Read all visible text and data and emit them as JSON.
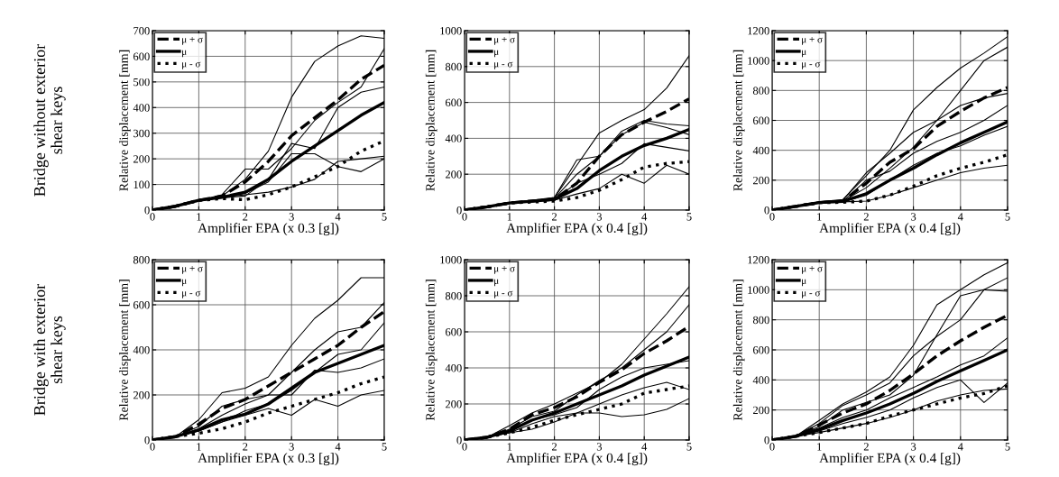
{
  "chart_data": [
    {
      "type": "line",
      "xlabel": "Amplifier EPA (x 0.3 [g])",
      "ylabel": "Relative displacement [mm]",
      "annotations": [
        "Bridge without exterior\nshear keys"
      ],
      "x": [
        0,
        0.5,
        1,
        1.5,
        2,
        2.5,
        3,
        3.5,
        4,
        4.5,
        5
      ],
      "xlim": [
        0,
        5
      ],
      "xticks": [
        0,
        1,
        2,
        3,
        4,
        5
      ],
      "ylim": [
        0,
        700
      ],
      "yticks": [
        0,
        100,
        200,
        300,
        400,
        500,
        600,
        700
      ],
      "grid": true,
      "legend": "top left",
      "series": [
        {
          "name": "μ + σ",
          "color": "#000000",
          "line_style": "dashed",
          "values": [
            0,
            15,
            38,
            55,
            110,
            190,
            290,
            360,
            430,
            510,
            565
          ]
        },
        {
          "name": "μ",
          "color": "#000000",
          "line_style": "solid",
          "values": [
            0,
            15,
            38,
            50,
            70,
            120,
            190,
            250,
            310,
            370,
            420
          ]
        },
        {
          "name": "μ - σ",
          "color": "#000000",
          "line_style": "dotted",
          "values": [
            0,
            15,
            38,
            45,
            40,
            60,
            90,
            130,
            170,
            230,
            270
          ]
        },
        {
          "color": "#000000",
          "line_style": "solid",
          "values": [
            0,
            15,
            38,
            55,
            120,
            230,
            440,
            580,
            640,
            680,
            670
          ]
        },
        {
          "color": "#000000",
          "line_style": "solid",
          "values": [
            0,
            15,
            38,
            60,
            160,
            160,
            240,
            350,
            420,
            480,
            630
          ]
        },
        {
          "color": "#000000",
          "line_style": "solid",
          "values": [
            0,
            15,
            38,
            50,
            60,
            70,
            90,
            120,
            190,
            200,
            210
          ]
        },
        {
          "color": "#000000",
          "line_style": "solid",
          "values": [
            0,
            15,
            38,
            48,
            55,
            120,
            260,
            240,
            400,
            460,
            480
          ]
        },
        {
          "color": "#000000",
          "line_style": "solid",
          "values": [
            0,
            15,
            38,
            50,
            65,
            110,
            220,
            220,
            170,
            150,
            200
          ]
        }
      ]
    },
    {
      "type": "line",
      "xlabel": "Amplifier EPA (x 0.4 [g])",
      "ylabel": "Relative displacement [mm]",
      "x": [
        0,
        0.5,
        1,
        1.5,
        2,
        2.5,
        3,
        3.5,
        4,
        4.5,
        5
      ],
      "xlim": [
        0,
        5
      ],
      "xticks": [
        0,
        1,
        2,
        3,
        4,
        5
      ],
      "ylim": [
        0,
        1000
      ],
      "yticks": [
        0,
        200,
        400,
        600,
        800,
        1000
      ],
      "grid": true,
      "legend": "top left",
      "series": [
        {
          "name": "μ + σ",
          "color": "#000000",
          "line_style": "dashed",
          "values": [
            0,
            18,
            40,
            50,
            60,
            150,
            300,
            420,
            490,
            550,
            620
          ]
        },
        {
          "name": "μ",
          "color": "#000000",
          "line_style": "solid",
          "values": [
            0,
            18,
            40,
            50,
            60,
            120,
            220,
            300,
            360,
            400,
            450
          ]
        },
        {
          "name": "μ - σ",
          "color": "#000000",
          "line_style": "dotted",
          "values": [
            0,
            18,
            40,
            45,
            50,
            70,
            110,
            170,
            240,
            260,
            270
          ]
        },
        {
          "color": "#000000",
          "line_style": "solid",
          "values": [
            0,
            18,
            42,
            55,
            70,
            250,
            430,
            500,
            560,
            680,
            860
          ]
        },
        {
          "color": "#000000",
          "line_style": "solid",
          "values": [
            0,
            18,
            40,
            52,
            65,
            200,
            300,
            440,
            500,
            480,
            470
          ]
        },
        {
          "color": "#000000",
          "line_style": "solid",
          "values": [
            0,
            18,
            38,
            48,
            55,
            90,
            120,
            200,
            150,
            250,
            200
          ]
        },
        {
          "color": "#000000",
          "line_style": "solid",
          "values": [
            0,
            18,
            40,
            50,
            60,
            150,
            200,
            260,
            370,
            350,
            330
          ]
        },
        {
          "color": "#000000",
          "line_style": "solid",
          "values": [
            0,
            18,
            40,
            50,
            70,
            280,
            300,
            420,
            490,
            460,
            420
          ]
        }
      ]
    },
    {
      "type": "line",
      "xlabel": "Amplifier EPA (x 0.4 [g])",
      "ylabel": "Relative displacement [mm]",
      "x": [
        0,
        0.5,
        1,
        1.5,
        2,
        2.5,
        3,
        3.5,
        4,
        4.5,
        5
      ],
      "xlim": [
        0,
        5
      ],
      "xticks": [
        0,
        1,
        2,
        3,
        4,
        5
      ],
      "ylim": [
        0,
        1200
      ],
      "yticks": [
        0,
        200,
        400,
        600,
        800,
        1000,
        1200
      ],
      "grid": true,
      "legend": "top left",
      "series": [
        {
          "name": "μ + σ",
          "color": "#000000",
          "line_style": "dashed",
          "values": [
            0,
            25,
            50,
            60,
            180,
            320,
            410,
            560,
            660,
            750,
            820
          ]
        },
        {
          "name": "μ",
          "color": "#000000",
          "line_style": "solid",
          "values": [
            0,
            25,
            50,
            58,
            110,
            200,
            280,
            370,
            450,
            520,
            590
          ]
        },
        {
          "name": "μ - σ",
          "color": "#000000",
          "line_style": "dotted",
          "values": [
            0,
            25,
            50,
            52,
            60,
            100,
            160,
            230,
            280,
            320,
            370
          ]
        },
        {
          "color": "#000000",
          "line_style": "solid",
          "values": [
            0,
            25,
            55,
            70,
            230,
            400,
            670,
            820,
            950,
            1050,
            1160
          ]
        },
        {
          "color": "#000000",
          "line_style": "solid",
          "values": [
            0,
            25,
            55,
            65,
            250,
            380,
            520,
            600,
            800,
            1000,
            1090
          ]
        },
        {
          "color": "#000000",
          "line_style": "solid",
          "values": [
            0,
            25,
            50,
            60,
            150,
            280,
            420,
            600,
            700,
            750,
            780
          ]
        },
        {
          "color": "#000000",
          "line_style": "solid",
          "values": [
            0,
            25,
            50,
            55,
            100,
            200,
            300,
            380,
            430,
            500,
            560
          ]
        },
        {
          "color": "#000000",
          "line_style": "solid",
          "values": [
            0,
            25,
            50,
            55,
            60,
            100,
            150,
            200,
            250,
            280,
            300
          ]
        },
        {
          "color": "#000000",
          "line_style": "solid",
          "values": [
            0,
            25,
            50,
            60,
            200,
            260,
            380,
            460,
            520,
            600,
            700
          ]
        }
      ]
    },
    {
      "type": "line",
      "xlabel": "Amplifier EPA (x 0.3 [g])",
      "ylabel": "Relative displacement [mm]",
      "annotations": [
        "Bridge with exterior\nshear keys"
      ],
      "x": [
        0,
        0.5,
        1,
        1.5,
        2,
        2.5,
        3,
        3.5,
        4,
        4.5,
        5
      ],
      "xlim": [
        0,
        5
      ],
      "xticks": [
        0,
        1,
        2,
        3,
        4,
        5
      ],
      "ylim": [
        0,
        800
      ],
      "yticks": [
        0,
        200,
        400,
        600,
        800
      ],
      "grid": true,
      "legend": "top left",
      "series": [
        {
          "name": "μ + σ",
          "color": "#000000",
          "line_style": "dashed",
          "values": [
            0,
            15,
            70,
            140,
            180,
            240,
            300,
            360,
            420,
            500,
            570
          ]
        },
        {
          "name": "μ",
          "color": "#000000",
          "line_style": "solid",
          "values": [
            0,
            15,
            45,
            90,
            115,
            160,
            230,
            300,
            340,
            380,
            420
          ]
        },
        {
          "name": "μ - σ",
          "color": "#000000",
          "line_style": "dotted",
          "values": [
            0,
            15,
            30,
            50,
            80,
            120,
            150,
            180,
            210,
            250,
            280
          ]
        },
        {
          "color": "#000000",
          "line_style": "solid",
          "values": [
            0,
            15,
            90,
            210,
            230,
            280,
            420,
            540,
            620,
            720,
            720
          ]
        },
        {
          "color": "#000000",
          "line_style": "solid",
          "values": [
            0,
            15,
            60,
            150,
            180,
            200,
            300,
            400,
            480,
            500,
            610
          ]
        },
        {
          "color": "#000000",
          "line_style": "solid",
          "values": [
            0,
            15,
            40,
            80,
            110,
            140,
            110,
            180,
            150,
            200,
            220
          ]
        },
        {
          "color": "#000000",
          "line_style": "solid",
          "values": [
            0,
            15,
            50,
            110,
            160,
            200,
            200,
            310,
            300,
            320,
            360
          ]
        },
        {
          "color": "#000000",
          "line_style": "solid",
          "values": [
            0,
            15,
            40,
            80,
            130,
            160,
            220,
            300,
            380,
            400,
            520
          ]
        }
      ]
    },
    {
      "type": "line",
      "xlabel": "Amplifier EPA (x 0.4 [g])",
      "ylabel": "Relative displacement [mm]",
      "x": [
        0,
        0.5,
        1,
        1.5,
        2,
        2.5,
        3,
        3.5,
        4,
        4.5,
        5
      ],
      "xlim": [
        0,
        5
      ],
      "xticks": [
        0,
        1,
        2,
        3,
        4,
        5
      ],
      "ylim": [
        0,
        1000
      ],
      "yticks": [
        0,
        200,
        400,
        600,
        800,
        1000
      ],
      "grid": true,
      "legend": "top left",
      "series": [
        {
          "name": "μ + σ",
          "color": "#000000",
          "line_style": "dashed",
          "values": [
            0,
            15,
            60,
            140,
            180,
            240,
            320,
            390,
            480,
            550,
            630
          ]
        },
        {
          "name": "μ",
          "color": "#000000",
          "line_style": "solid",
          "values": [
            0,
            15,
            50,
            110,
            150,
            200,
            250,
            300,
            360,
            410,
            460
          ]
        },
        {
          "name": "μ - σ",
          "color": "#000000",
          "line_style": "dotted",
          "values": [
            0,
            15,
            40,
            70,
            110,
            140,
            170,
            200,
            260,
            280,
            300
          ]
        },
        {
          "color": "#000000",
          "line_style": "solid",
          "values": [
            0,
            15,
            80,
            150,
            200,
            260,
            320,
            420,
            560,
            700,
            850
          ]
        },
        {
          "color": "#000000",
          "line_style": "solid",
          "values": [
            0,
            15,
            60,
            130,
            160,
            250,
            330,
            400,
            500,
            600,
            750
          ]
        },
        {
          "color": "#000000",
          "line_style": "solid",
          "values": [
            0,
            15,
            40,
            60,
            100,
            150,
            150,
            130,
            140,
            170,
            230
          ]
        },
        {
          "color": "#000000",
          "line_style": "solid",
          "values": [
            0,
            15,
            50,
            110,
            140,
            180,
            280,
            350,
            400,
            420,
            440
          ]
        },
        {
          "color": "#000000",
          "line_style": "solid",
          "values": [
            0,
            15,
            40,
            90,
            130,
            150,
            200,
            250,
            290,
            320,
            280
          ]
        }
      ]
    },
    {
      "type": "line",
      "xlabel": "Amplifier EPA (x 0.4 [g])",
      "ylabel": "Relative displacement [mm]",
      "x": [
        0,
        0.5,
        1,
        1.5,
        2,
        2.5,
        3,
        3.5,
        4,
        4.5,
        5
      ],
      "xlim": [
        0,
        5
      ],
      "xticks": [
        0,
        1,
        2,
        3,
        4,
        5
      ],
      "ylim": [
        0,
        1200
      ],
      "yticks": [
        0,
        200,
        400,
        600,
        800,
        1000,
        1200
      ],
      "grid": true,
      "legend": "top left",
      "series": [
        {
          "name": "μ + σ",
          "color": "#000000",
          "line_style": "dashed",
          "values": [
            0,
            25,
            100,
            180,
            240,
            330,
            440,
            560,
            660,
            750,
            830
          ]
        },
        {
          "name": "μ",
          "color": "#000000",
          "line_style": "solid",
          "values": [
            0,
            25,
            70,
            130,
            180,
            240,
            310,
            390,
            460,
            530,
            600
          ]
        },
        {
          "name": "μ - σ",
          "color": "#000000",
          "line_style": "dotted",
          "values": [
            0,
            25,
            50,
            80,
            110,
            160,
            200,
            240,
            280,
            310,
            360
          ]
        },
        {
          "color": "#000000",
          "line_style": "solid",
          "values": [
            0,
            25,
            130,
            240,
            320,
            420,
            630,
            900,
            1000,
            1100,
            1180
          ]
        },
        {
          "color": "#000000",
          "line_style": "solid",
          "values": [
            0,
            25,
            110,
            230,
            300,
            380,
            560,
            690,
            800,
            1000,
            1080
          ]
        },
        {
          "color": "#000000",
          "line_style": "solid",
          "values": [
            0,
            25,
            90,
            200,
            250,
            300,
            430,
            700,
            960,
            1000,
            990
          ]
        },
        {
          "color": "#000000",
          "line_style": "solid",
          "values": [
            0,
            25,
            60,
            110,
            150,
            200,
            280,
            350,
            400,
            250,
            380
          ]
        },
        {
          "color": "#000000",
          "line_style": "solid",
          "values": [
            0,
            25,
            50,
            80,
            110,
            150,
            200,
            260,
            300,
            330,
            340
          ]
        },
        {
          "color": "#000000",
          "line_style": "solid",
          "values": [
            0,
            25,
            80,
            150,
            200,
            280,
            350,
            420,
            500,
            560,
            680
          ]
        }
      ]
    }
  ]
}
